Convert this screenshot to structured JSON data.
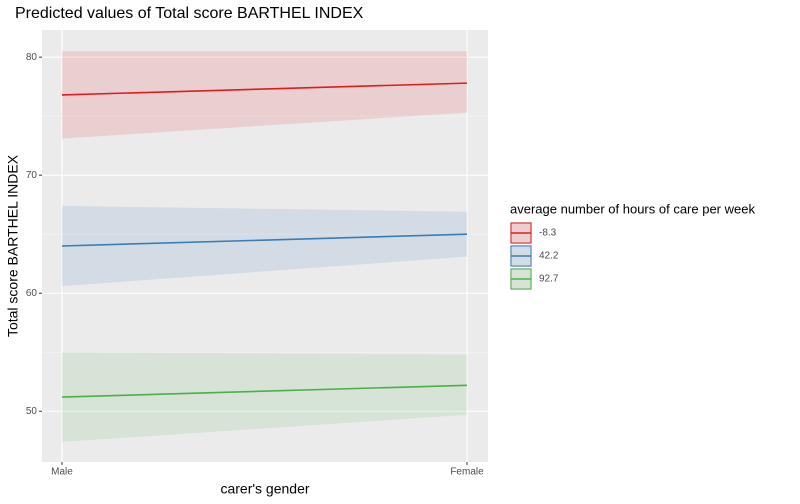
{
  "chart_data": {
    "type": "line",
    "title": "Predicted values of Total score BARTHEL INDEX",
    "x_label": "carer's gender",
    "y_label": "Total score BARTHEL INDEX",
    "legend_title": "average number of hours of care per week",
    "categories": [
      "Male",
      "Female"
    ],
    "series": [
      {
        "name": "-8.3",
        "color": "#e41a1c",
        "values": [
          76.8,
          77.8
        ],
        "lower": [
          73.1,
          75.3
        ],
        "upper": [
          80.5,
          80.5
        ]
      },
      {
        "name": "42.2",
        "color": "#377eb8",
        "values": [
          64.0,
          65.0
        ],
        "lower": [
          60.6,
          63.1
        ],
        "upper": [
          67.4,
          66.9
        ]
      },
      {
        "name": "92.7",
        "color": "#4daf4a",
        "values": [
          51.2,
          52.2
        ],
        "lower": [
          47.4,
          49.7
        ],
        "upper": [
          55.0,
          54.8
        ]
      }
    ],
    "ylim": [
      45.7,
      82.3
    ],
    "yticks": [
      50,
      60,
      70,
      80
    ],
    "y_minor_ticks": [
      55,
      65,
      75
    ],
    "grid": true
  }
}
